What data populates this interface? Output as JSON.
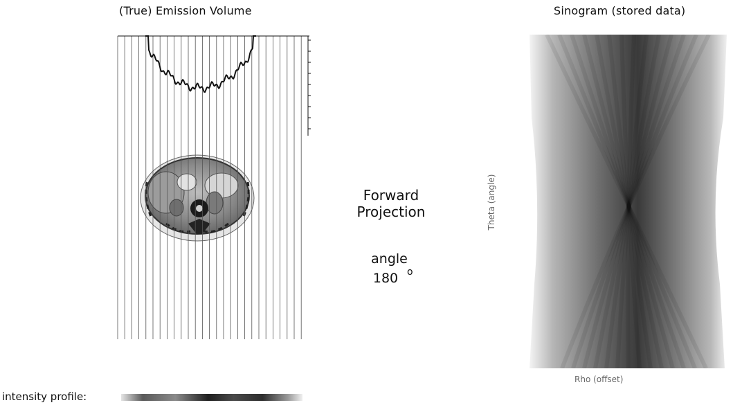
{
  "left_panel": {
    "title": "(True) Emission Volume"
  },
  "right_panel": {
    "title": "Sinogram (stored data)"
  },
  "center": {
    "method_label": "Forward\nProjection",
    "angle_label": "angle",
    "angle_value": "180",
    "degree_symbol": "o"
  },
  "sinogram": {
    "y_axis_label": "Theta (angle)",
    "x_axis_label": "Rho (offset)"
  },
  "footer": {
    "profile_label": "intensity profile:"
  },
  "colors": {
    "background": "#ffffff",
    "line": "#111111",
    "ray": "#555555",
    "sinogram_dark": "#1a1a1a",
    "sinogram_light": "#dcdcdc"
  }
}
